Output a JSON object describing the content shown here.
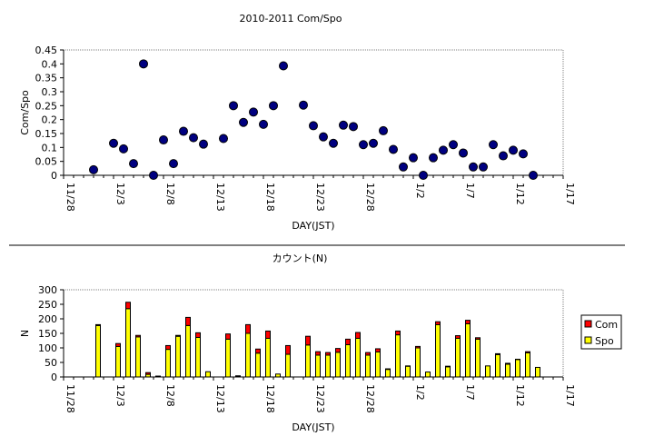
{
  "colors": {
    "point": "#000080",
    "com": "#ff0000",
    "spo": "#ffff00",
    "axis": "#000000",
    "frame": "#808080"
  },
  "chart_data": [
    {
      "type": "scatter",
      "title": "2010-2011 Com/Spo",
      "xlabel": "DAY(JST)",
      "ylabel": "Com/Spo",
      "xlim": [
        "11/28",
        "1/17"
      ],
      "ylim": [
        0,
        0.45
      ],
      "xticks": [
        "11/28",
        "12/3",
        "12/8",
        "12/13",
        "12/18",
        "12/23",
        "12/28",
        "1/2",
        "1/7",
        "1/12",
        "1/17"
      ],
      "yticks": [
        "0",
        "0.05",
        "0.1",
        "0.15",
        "0.2",
        "0.25",
        "0.3",
        "0.35",
        "0.4",
        "0.45"
      ],
      "grid": false,
      "points": [
        {
          "x": "12/1",
          "y": 0.02
        },
        {
          "x": "12/3",
          "y": 0.115
        },
        {
          "x": "12/4",
          "y": 0.095
        },
        {
          "x": "12/5",
          "y": 0.042
        },
        {
          "x": "12/6",
          "y": 0.4
        },
        {
          "x": "12/7",
          "y": 0.0
        },
        {
          "x": "12/8",
          "y": 0.127
        },
        {
          "x": "12/9",
          "y": 0.042
        },
        {
          "x": "12/10",
          "y": 0.158
        },
        {
          "x": "12/11",
          "y": 0.135
        },
        {
          "x": "12/12",
          "y": 0.112
        },
        {
          "x": "12/14",
          "y": 0.132
        },
        {
          "x": "12/15",
          "y": 0.25
        },
        {
          "x": "12/16",
          "y": 0.19
        },
        {
          "x": "12/17",
          "y": 0.227
        },
        {
          "x": "12/18",
          "y": 0.183
        },
        {
          "x": "12/19",
          "y": 0.25
        },
        {
          "x": "12/20",
          "y": 0.393
        },
        {
          "x": "12/22",
          "y": 0.252
        },
        {
          "x": "12/23",
          "y": 0.178
        },
        {
          "x": "12/24",
          "y": 0.138
        },
        {
          "x": "12/25",
          "y": 0.115
        },
        {
          "x": "12/26",
          "y": 0.18
        },
        {
          "x": "12/27",
          "y": 0.175
        },
        {
          "x": "12/28",
          "y": 0.11
        },
        {
          "x": "12/29",
          "y": 0.115
        },
        {
          "x": "12/30",
          "y": 0.16
        },
        {
          "x": "12/31",
          "y": 0.093
        },
        {
          "x": "1/1",
          "y": 0.03
        },
        {
          "x": "1/2",
          "y": 0.063
        },
        {
          "x": "1/3",
          "y": 0.0
        },
        {
          "x": "1/4",
          "y": 0.063
        },
        {
          "x": "1/5",
          "y": 0.09
        },
        {
          "x": "1/6",
          "y": 0.11
        },
        {
          "x": "1/7",
          "y": 0.08
        },
        {
          "x": "1/8",
          "y": 0.03
        },
        {
          "x": "1/9",
          "y": 0.03
        },
        {
          "x": "1/10",
          "y": 0.11
        },
        {
          "x": "1/11",
          "y": 0.07
        },
        {
          "x": "1/12",
          "y": 0.09
        },
        {
          "x": "1/13",
          "y": 0.077
        },
        {
          "x": "1/14",
          "y": 0.0
        }
      ]
    },
    {
      "type": "bar",
      "stacked": true,
      "title": "カウント(N)",
      "xlabel": "DAY(JST)",
      "ylabel": "N",
      "xlim": [
        "11/28",
        "1/17"
      ],
      "ylim": [
        0,
        300
      ],
      "xticks": [
        "11/28",
        "12/3",
        "12/8",
        "12/13",
        "12/18",
        "12/23",
        "12/28",
        "1/2",
        "1/7",
        "1/12",
        "1/17"
      ],
      "yticks": [
        "0",
        "50",
        "100",
        "150",
        "200",
        "250",
        "300"
      ],
      "grid": false,
      "legend_position": "right",
      "series": [
        {
          "name": "Com",
          "color": "#ff0000"
        },
        {
          "name": "Spo",
          "color": "#ffff00"
        }
      ],
      "bars": [
        {
          "x": "12/1",
          "spo": 177,
          "com": 3
        },
        {
          "x": "12/3",
          "spo": 105,
          "com": 10
        },
        {
          "x": "12/4",
          "spo": 235,
          "com": 22
        },
        {
          "x": "12/5",
          "spo": 138,
          "com": 5
        },
        {
          "x": "12/6",
          "spo": 9,
          "com": 6
        },
        {
          "x": "12/7",
          "spo": 0,
          "com": 3
        },
        {
          "x": "12/8",
          "spo": 95,
          "com": 13
        },
        {
          "x": "12/9",
          "spo": 140,
          "com": 3
        },
        {
          "x": "12/10",
          "spo": 177,
          "com": 28
        },
        {
          "x": "12/11",
          "spo": 136,
          "com": 16
        },
        {
          "x": "12/12",
          "spo": 18,
          "com": 0
        },
        {
          "x": "12/14",
          "spo": 130,
          "com": 18
        },
        {
          "x": "12/15",
          "spo": 0,
          "com": 4
        },
        {
          "x": "12/16",
          "spo": 150,
          "com": 30
        },
        {
          "x": "12/17",
          "spo": 82,
          "com": 14
        },
        {
          "x": "12/18",
          "spo": 133,
          "com": 25
        },
        {
          "x": "12/19",
          "spo": 10,
          "com": 0
        },
        {
          "x": "12/20",
          "spo": 78,
          "com": 30
        },
        {
          "x": "12/22",
          "spo": 110,
          "com": 30
        },
        {
          "x": "12/23",
          "spo": 75,
          "com": 12
        },
        {
          "x": "12/24",
          "spo": 75,
          "com": 9
        },
        {
          "x": "12/25",
          "spo": 85,
          "com": 13
        },
        {
          "x": "12/26",
          "spo": 111,
          "com": 19
        },
        {
          "x": "12/27",
          "spo": 133,
          "com": 20
        },
        {
          "x": "12/28",
          "spo": 75,
          "com": 9
        },
        {
          "x": "12/29",
          "spo": 86,
          "com": 11
        },
        {
          "x": "12/30",
          "spo": 26,
          "com": 2
        },
        {
          "x": "12/31",
          "spo": 145,
          "com": 13
        },
        {
          "x": "1/1",
          "spo": 37,
          "com": 1
        },
        {
          "x": "1/2",
          "spo": 100,
          "com": 5
        },
        {
          "x": "1/3",
          "spo": 17,
          "com": 0
        },
        {
          "x": "1/4",
          "spo": 180,
          "com": 10
        },
        {
          "x": "1/5",
          "spo": 35,
          "com": 2
        },
        {
          "x": "1/6",
          "spo": 133,
          "com": 9
        },
        {
          "x": "1/7",
          "spo": 183,
          "com": 12
        },
        {
          "x": "1/8",
          "spo": 130,
          "com": 5
        },
        {
          "x": "1/9",
          "spo": 38,
          "com": 0
        },
        {
          "x": "1/10",
          "spo": 77,
          "com": 3
        },
        {
          "x": "1/11",
          "spo": 44,
          "com": 3
        },
        {
          "x": "1/12",
          "spo": 60,
          "com": 1
        },
        {
          "x": "1/13",
          "spo": 83,
          "com": 4
        },
        {
          "x": "1/14",
          "spo": 33,
          "com": 0
        }
      ]
    }
  ]
}
